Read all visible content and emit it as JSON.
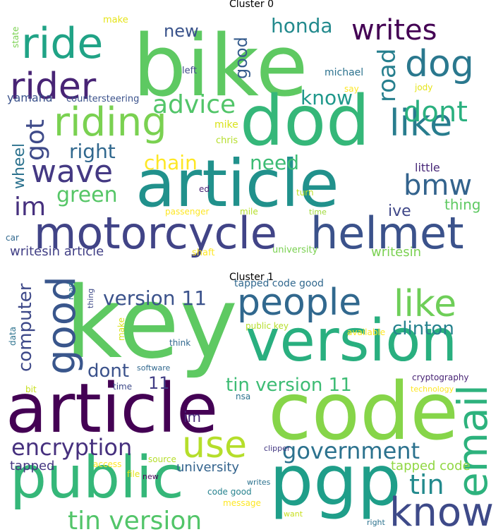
{
  "chart_data": [
    {
      "type": "wordcloud",
      "title": "Cluster 0",
      "words": [
        {
          "text": "bike",
          "color": "#5ec962"
        },
        {
          "text": "dod",
          "color": "#35b779"
        },
        {
          "text": "article",
          "color": "#21918c"
        },
        {
          "text": "motorcycle",
          "color": "#414487"
        },
        {
          "text": "helmet",
          "color": "#3b528b"
        },
        {
          "text": "riding",
          "color": "#7ad151"
        },
        {
          "text": "ride",
          "color": "#20a386"
        },
        {
          "text": "rider",
          "color": "#482475"
        },
        {
          "text": "writes",
          "color": "#440154"
        },
        {
          "text": "dog",
          "color": "#2a788e"
        },
        {
          "text": "like",
          "color": "#287d8e"
        },
        {
          "text": "wave",
          "color": "#443983"
        },
        {
          "text": "dont",
          "color": "#2ab07f"
        },
        {
          "text": "bmw",
          "color": "#33638d"
        },
        {
          "text": "advice",
          "color": "#52c569"
        },
        {
          "text": "got",
          "color": "#3e4a89"
        },
        {
          "text": "im",
          "color": "#46307e"
        },
        {
          "text": "green",
          "color": "#56c667"
        },
        {
          "text": "right",
          "color": "#31688e"
        },
        {
          "text": "road",
          "color": "#277f8e"
        },
        {
          "text": "honda",
          "color": "#238a8d"
        },
        {
          "text": "know",
          "color": "#1f988b"
        },
        {
          "text": "need",
          "color": "#3dbc74"
        },
        {
          "text": "chain",
          "color": "#fde725"
        },
        {
          "text": "wheel",
          "color": "#2c728e"
        },
        {
          "text": "good",
          "color": "#365c8d"
        },
        {
          "text": "new",
          "color": "#3a538b"
        },
        {
          "text": "ive",
          "color": "#3f4788"
        },
        {
          "text": "thing",
          "color": "#5ec962"
        },
        {
          "text": "yamaha",
          "color": "#3b528b"
        },
        {
          "text": "writesin article",
          "color": "#424086"
        },
        {
          "text": "writesin",
          "color": "#7ad151"
        },
        {
          "text": "little",
          "color": "#482878"
        },
        {
          "text": "michael",
          "color": "#2c728e"
        },
        {
          "text": "mike",
          "color": "#d8e219"
        },
        {
          "text": "chris",
          "color": "#b5de2b"
        },
        {
          "text": "countersteering",
          "color": "#3b528b"
        },
        {
          "text": "make",
          "color": "#e5e419"
        },
        {
          "text": "state",
          "color": "#7ad151"
        },
        {
          "text": "left",
          "color": "#3e4a89"
        },
        {
          "text": "say",
          "color": "#fde725"
        },
        {
          "text": "jody",
          "color": "#e5e419"
        },
        {
          "text": "turn",
          "color": "#bddf26"
        },
        {
          "text": "ed",
          "color": "#482475"
        },
        {
          "text": "passenger",
          "color": "#fde725"
        },
        {
          "text": "mile",
          "color": "#b5de2b"
        },
        {
          "text": "time",
          "color": "#9fda3a"
        },
        {
          "text": "car",
          "color": "#31688e"
        },
        {
          "text": "shaft",
          "color": "#fde725"
        },
        {
          "text": "university",
          "color": "#7ad151"
        }
      ]
    },
    {
      "type": "wordcloud",
      "title": "Cluster 1",
      "words": [
        {
          "text": "key",
          "color": "#5ec962"
        },
        {
          "text": "version",
          "color": "#29af7f"
        },
        {
          "text": "article",
          "color": "#440154"
        },
        {
          "text": "code",
          "color": "#86d549"
        },
        {
          "text": "public",
          "color": "#35b779"
        },
        {
          "text": "pgp",
          "color": "#1f9e89"
        },
        {
          "text": "people",
          "color": "#31688e"
        },
        {
          "text": "like",
          "color": "#6ece58"
        },
        {
          "text": "good",
          "color": "#39568c"
        },
        {
          "text": "email",
          "color": "#2db27d"
        },
        {
          "text": "know",
          "color": "#3e4a89"
        },
        {
          "text": "use",
          "color": "#b5de2b"
        },
        {
          "text": "encryption",
          "color": "#46307e"
        },
        {
          "text": "government",
          "color": "#2c728e"
        },
        {
          "text": "tin version",
          "color": "#52c569"
        },
        {
          "text": "tin",
          "color": "#238a8d"
        },
        {
          "text": "clinton",
          "color": "#26828e"
        },
        {
          "text": "version 11",
          "color": "#3b528b"
        },
        {
          "text": "tin version 11",
          "color": "#3dbc74"
        },
        {
          "text": "computer",
          "color": "#3e4989"
        },
        {
          "text": "dont",
          "color": "#3b528b"
        },
        {
          "text": "11",
          "color": "#433e85"
        },
        {
          "text": "im",
          "color": "#482878"
        },
        {
          "text": "university",
          "color": "#33638d"
        },
        {
          "text": "tapped",
          "color": "#453781"
        },
        {
          "text": "tapped code",
          "color": "#90d743"
        },
        {
          "text": "tapped code good",
          "color": "#31688e"
        },
        {
          "text": "public key",
          "color": "#b5de2b"
        },
        {
          "text": "available",
          "color": "#fde725"
        },
        {
          "text": "cryptography",
          "color": "#482475"
        },
        {
          "text": "technology",
          "color": "#fde725"
        },
        {
          "text": "software",
          "color": "#31688e"
        },
        {
          "text": "think",
          "color": "#31688e"
        },
        {
          "text": "data",
          "color": "#2c728e"
        },
        {
          "text": "make",
          "color": "#d8e219"
        },
        {
          "text": "read",
          "color": "#2c728e"
        },
        {
          "text": "thing",
          "color": "#3e4a89"
        },
        {
          "text": "bit",
          "color": "#c8e020"
        },
        {
          "text": "time",
          "color": "#3e4a89"
        },
        {
          "text": "nsa",
          "color": "#2c728e"
        },
        {
          "text": "file",
          "color": "#e5e419"
        },
        {
          "text": "access",
          "color": "#fde725"
        },
        {
          "text": "source",
          "color": "#b5de2b"
        },
        {
          "text": "clipper",
          "color": "#443983"
        },
        {
          "text": "new",
          "color": "#440154"
        },
        {
          "text": "writes",
          "color": "#2c728e"
        },
        {
          "text": "code good",
          "color": "#26828e"
        },
        {
          "text": "message",
          "color": "#fde725"
        },
        {
          "text": "want",
          "color": "#c8e020"
        },
        {
          "text": "right",
          "color": "#2c728e"
        }
      ]
    }
  ]
}
